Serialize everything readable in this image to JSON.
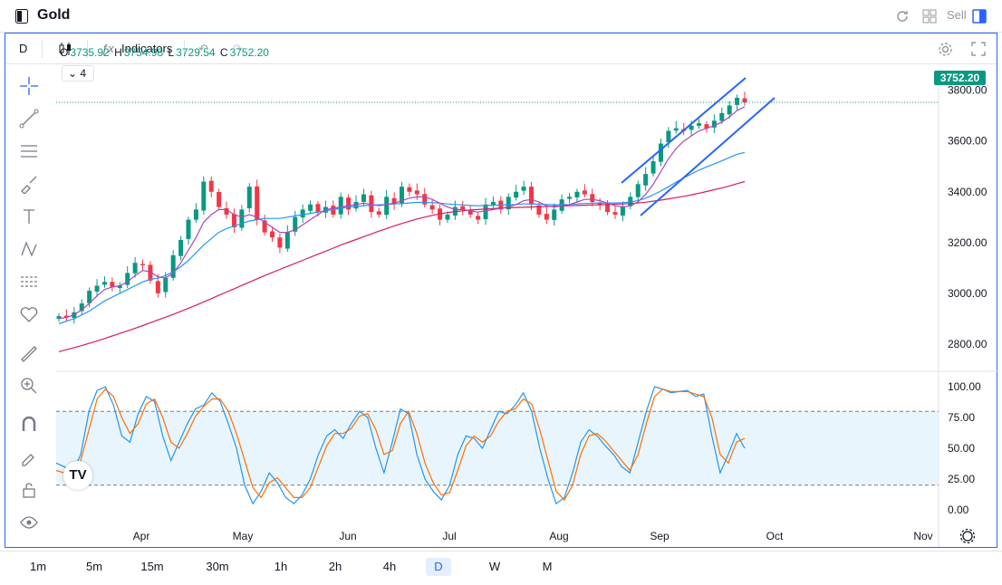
{
  "window": {
    "title": "Gold",
    "sell_label": "Sell"
  },
  "toolbar": {
    "interval": "D",
    "indicators_label": "Indicators"
  },
  "legend": {
    "open_label": "O",
    "open": "3735.92",
    "high_label": "H",
    "high": "3754.98",
    "low_label": "L",
    "low": "3729.54",
    "close_label": "C",
    "close": "3752.20",
    "collapsed_count": "4"
  },
  "last_price": "3752.20",
  "colors": {
    "up": "#089981",
    "down": "#f23645",
    "accent": "#2962ff"
  },
  "timeframes": [
    "1m",
    "5m",
    "15m",
    "30m",
    "1h",
    "2h",
    "4h",
    "D",
    "W",
    "M"
  ],
  "active_timeframe": "D",
  "chart_data": {
    "type": "candlestick",
    "price_axis": {
      "ticks": [
        "3800.00",
        "3600.00",
        "3400.00",
        "3200.00",
        "3000.00",
        "2800.00"
      ],
      "range": [
        2700,
        3870
      ]
    },
    "oscillator_axis": {
      "ticks": [
        "100.00",
        "75.00",
        "50.00",
        "25.00",
        "0.00"
      ],
      "band": [
        20,
        80
      ]
    },
    "x_ticks": [
      "Apr",
      "May",
      "Jun",
      "Jul",
      "Aug",
      "Sep",
      "Oct",
      "Nov"
    ],
    "close_series": [
      2910,
      2905,
      2925,
      2960,
      3010,
      3030,
      3045,
      3025,
      3030,
      3080,
      3120,
      3110,
      3050,
      3000,
      3060,
      3150,
      3210,
      3290,
      3330,
      3440,
      3400,
      3340,
      3310,
      3260,
      3330,
      3420,
      3290,
      3240,
      3220,
      3180,
      3240,
      3300,
      3330,
      3350,
      3320,
      3340,
      3310,
      3380,
      3330,
      3360,
      3390,
      3320,
      3310,
      3380,
      3350,
      3420,
      3400,
      3390,
      3350,
      3330,
      3290,
      3310,
      3340,
      3330,
      3310,
      3290,
      3350,
      3360,
      3330,
      3380,
      3400,
      3420,
      3350,
      3310,
      3290,
      3330,
      3370,
      3380,
      3400,
      3390,
      3360,
      3350,
      3320,
      3310,
      3340,
      3380,
      3430,
      3470,
      3520,
      3590,
      3640,
      3650,
      3640,
      3660,
      3670,
      3650,
      3680,
      3710,
      3740,
      3770,
      3752
    ],
    "ma_short": [
      2900,
      2905,
      2915,
      2935,
      2960,
      2990,
      3015,
      3025,
      3030,
      3045,
      3070,
      3090,
      3085,
      3065,
      3060,
      3080,
      3120,
      3170,
      3220,
      3280,
      3310,
      3330,
      3330,
      3310,
      3300,
      3310,
      3300,
      3280,
      3260,
      3240,
      3240,
      3250,
      3270,
      3290,
      3310,
      3330,
      3335,
      3340,
      3345,
      3350,
      3355,
      3350,
      3345,
      3350,
      3355,
      3365,
      3375,
      3380,
      3380,
      3370,
      3355,
      3340,
      3330,
      3330,
      3325,
      3320,
      3325,
      3330,
      3335,
      3340,
      3350,
      3365,
      3370,
      3360,
      3345,
      3340,
      3345,
      3350,
      3360,
      3370,
      3370,
      3365,
      3355,
      3345,
      3340,
      3345,
      3360,
      3390,
      3430,
      3480,
      3530,
      3570,
      3600,
      3620,
      3640,
      3650,
      3660,
      3675,
      3695,
      3720,
      3735
    ],
    "ma_mid": [
      2880,
      2890,
      2900,
      2915,
      2930,
      2950,
      2970,
      2985,
      3000,
      3015,
      3030,
      3045,
      3055,
      3060,
      3070,
      3085,
      3105,
      3130,
      3160,
      3190,
      3215,
      3240,
      3255,
      3265,
      3275,
      3285,
      3290,
      3295,
      3295,
      3295,
      3300,
      3305,
      3310,
      3315,
      3320,
      3325,
      3330,
      3335,
      3340,
      3342,
      3345,
      3347,
      3349,
      3350,
      3352,
      3354,
      3356,
      3358,
      3358,
      3357,
      3355,
      3352,
      3350,
      3348,
      3346,
      3345,
      3346,
      3347,
      3348,
      3349,
      3350,
      3352,
      3352,
      3351,
      3350,
      3349,
      3349,
      3350,
      3352,
      3354,
      3355,
      3356,
      3356,
      3356,
      3357,
      3360,
      3365,
      3375,
      3388,
      3403,
      3420,
      3438,
      3455,
      3470,
      3485,
      3498,
      3510,
      3522,
      3535,
      3548,
      3555
    ],
    "ma_long": [
      2770,
      2778,
      2786,
      2794,
      2803,
      2812,
      2822,
      2832,
      2842,
      2852,
      2862,
      2873,
      2884,
      2895,
      2906,
      2917,
      2929,
      2941,
      2953,
      2966,
      2979,
      2992,
      3005,
      3018,
      3031,
      3044,
      3057,
      3070,
      3082,
      3094,
      3106,
      3118,
      3130,
      3142,
      3154,
      3166,
      3178,
      3190,
      3201,
      3212,
      3223,
      3234,
      3245,
      3255,
      3265,
      3275,
      3284,
      3293,
      3300,
      3307,
      3313,
      3318,
      3322,
      3325,
      3328,
      3330,
      3332,
      3334,
      3336,
      3337,
      3338,
      3339,
      3340,
      3341,
      3342,
      3343,
      3344,
      3345,
      3346,
      3347,
      3348,
      3349,
      3350,
      3351,
      3352,
      3354,
      3356,
      3359,
      3363,
      3367,
      3372,
      3377,
      3382,
      3388,
      3394,
      3401,
      3408,
      3415,
      3423,
      3432,
      3440
    ],
    "stoch_k": [
      38,
      35,
      30,
      45,
      80,
      97,
      100,
      85,
      60,
      55,
      78,
      92,
      88,
      60,
      40,
      55,
      70,
      82,
      85,
      95,
      88,
      70,
      50,
      20,
      5,
      15,
      30,
      22,
      10,
      5,
      12,
      25,
      45,
      60,
      65,
      58,
      70,
      80,
      75,
      50,
      30,
      55,
      82,
      78,
      45,
      25,
      15,
      8,
      20,
      45,
      60,
      58,
      50,
      65,
      80,
      78,
      85,
      95,
      80,
      50,
      25,
      5,
      10,
      30,
      55,
      65,
      60,
      52,
      45,
      35,
      30,
      55,
      80,
      100,
      98,
      95,
      96,
      97,
      92,
      94,
      60,
      30,
      45,
      62,
      50
    ],
    "stoch_d": [
      32,
      30,
      32,
      40,
      65,
      90,
      98,
      92,
      75,
      62,
      70,
      86,
      90,
      75,
      55,
      50,
      62,
      76,
      84,
      90,
      90,
      80,
      62,
      40,
      18,
      10,
      22,
      26,
      18,
      10,
      10,
      18,
      35,
      52,
      62,
      62,
      66,
      76,
      78,
      65,
      45,
      48,
      70,
      80,
      62,
      38,
      22,
      12,
      14,
      32,
      52,
      60,
      55,
      60,
      72,
      80,
      82,
      90,
      86,
      65,
      40,
      15,
      8,
      20,
      45,
      60,
      62,
      56,
      48,
      40,
      32,
      45,
      70,
      92,
      98,
      96,
      96,
      96,
      94,
      92,
      75,
      45,
      38,
      55,
      58
    ]
  }
}
